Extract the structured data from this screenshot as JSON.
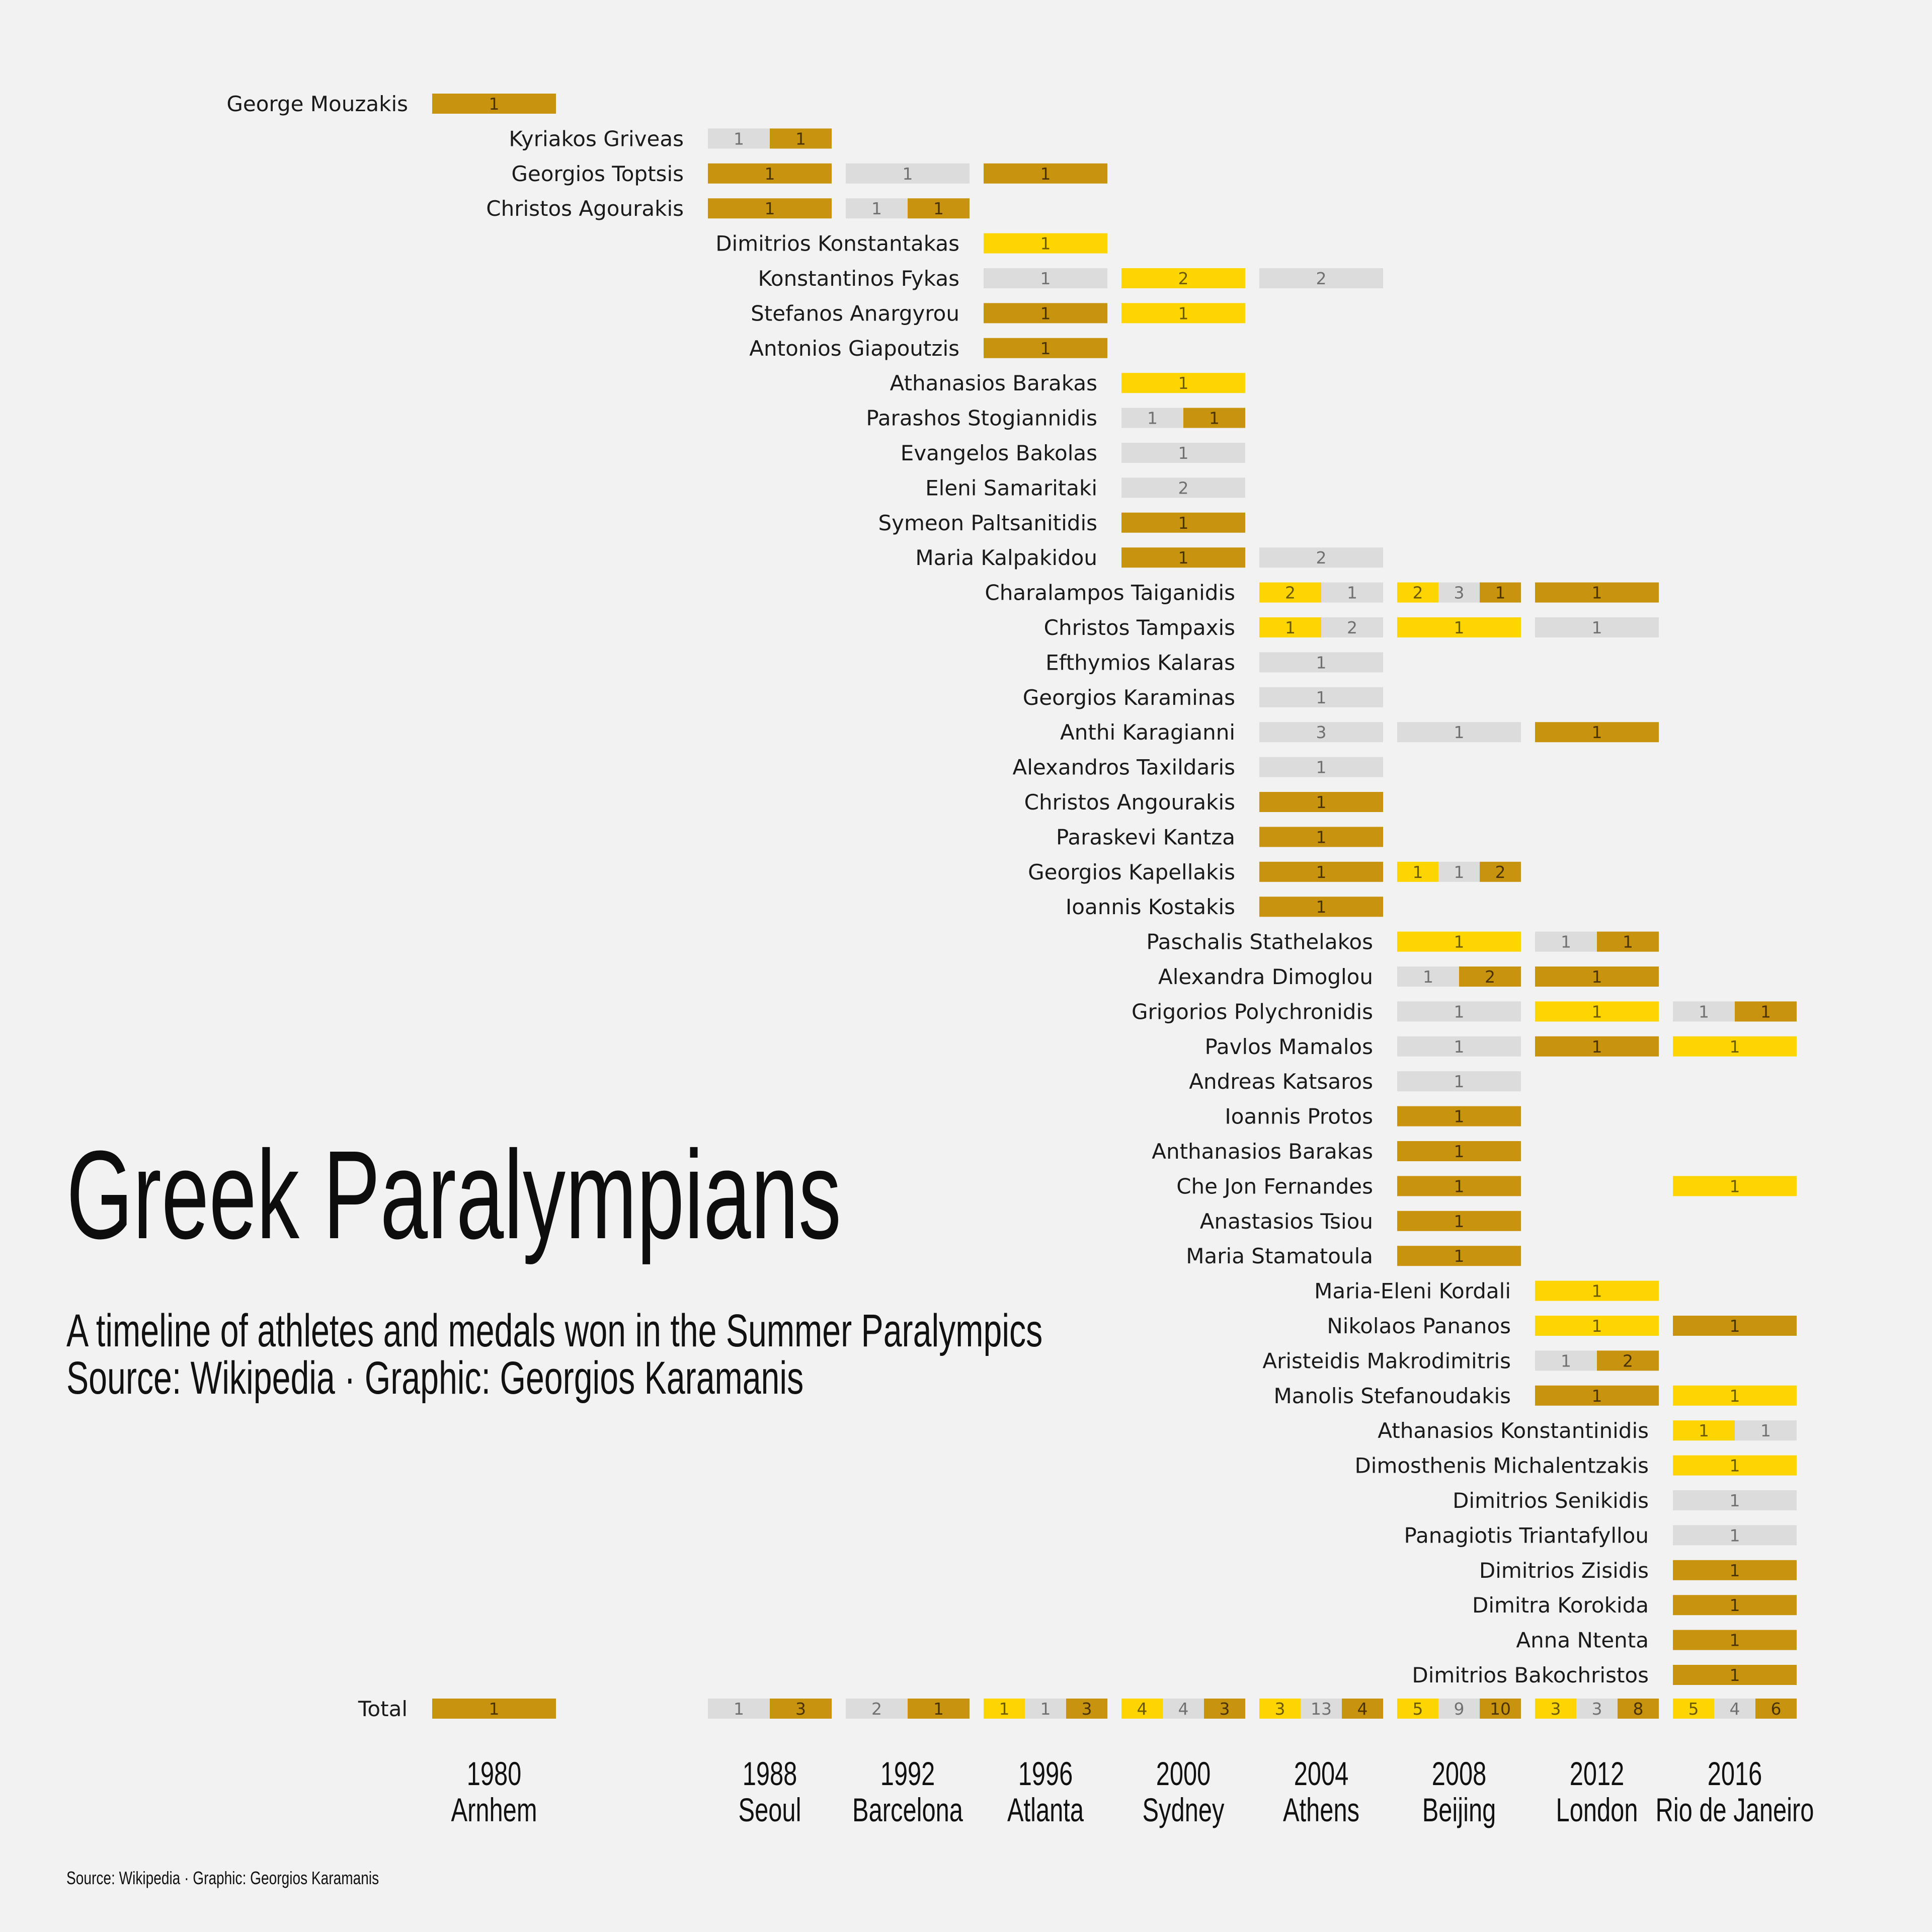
{
  "title": "Greek Paralympians",
  "subtitle_line1": "A timeline of athletes and medals won in the Summer Paralympics",
  "subtitle_line2": "Source: Wikipedia · Graphic: Georgios Karamanis",
  "footer": "Source: Wikipedia · Graphic: Georgios Karamanis",
  "colors": {
    "gold": "#ffd500",
    "silver": "#dcdcdc",
    "bronze": "#c8940f",
    "background": "#f2f2f2"
  },
  "chart_data": {
    "type": "table",
    "games": [
      {
        "year": "1980",
        "city": "Arnhem"
      },
      {
        "year": "1988",
        "city": "Seoul"
      },
      {
        "year": "1992",
        "city": "Barcelona"
      },
      {
        "year": "1996",
        "city": "Atlanta"
      },
      {
        "year": "2000",
        "city": "Sydney"
      },
      {
        "year": "2004",
        "city": "Athens"
      },
      {
        "year": "2008",
        "city": "Beijing"
      },
      {
        "year": "2012",
        "city": "London"
      },
      {
        "year": "2016",
        "city": "Rio de Janeiro"
      }
    ],
    "medal_order": [
      "gold",
      "silver",
      "bronze"
    ],
    "athletes": [
      {
        "name": "George Mouzakis",
        "medals": [
          {
            "games": "1980",
            "gold": 0,
            "silver": 0,
            "bronze": 1
          }
        ]
      },
      {
        "name": "Kyriakos Griveas",
        "medals": [
          {
            "games": "1988",
            "gold": 0,
            "silver": 1,
            "bronze": 1
          }
        ]
      },
      {
        "name": "Georgios Toptsis",
        "medals": [
          {
            "games": "1988",
            "gold": 0,
            "silver": 0,
            "bronze": 1
          },
          {
            "games": "1992",
            "gold": 0,
            "silver": 1,
            "bronze": 0
          },
          {
            "games": "1996",
            "gold": 0,
            "silver": 0,
            "bronze": 1
          }
        ]
      },
      {
        "name": "Christos Agourakis",
        "medals": [
          {
            "games": "1988",
            "gold": 0,
            "silver": 0,
            "bronze": 1
          },
          {
            "games": "1992",
            "gold": 0,
            "silver": 1,
            "bronze": 1
          }
        ]
      },
      {
        "name": "Dimitrios Konstantakas",
        "medals": [
          {
            "games": "1996",
            "gold": 1,
            "silver": 0,
            "bronze": 0
          }
        ]
      },
      {
        "name": "Konstantinos Fykas",
        "medals": [
          {
            "games": "1996",
            "gold": 0,
            "silver": 1,
            "bronze": 0
          },
          {
            "games": "2000",
            "gold": 2,
            "silver": 0,
            "bronze": 0
          },
          {
            "games": "2004",
            "gold": 0,
            "silver": 2,
            "bronze": 0
          }
        ]
      },
      {
        "name": "Stefanos Anargyrou",
        "medals": [
          {
            "games": "1996",
            "gold": 0,
            "silver": 0,
            "bronze": 1
          },
          {
            "games": "2000",
            "gold": 1,
            "silver": 0,
            "bronze": 0
          }
        ]
      },
      {
        "name": "Antonios Giapoutzis",
        "medals": [
          {
            "games": "1996",
            "gold": 0,
            "silver": 0,
            "bronze": 1
          }
        ]
      },
      {
        "name": "Athanasios Barakas",
        "medals": [
          {
            "games": "2000",
            "gold": 1,
            "silver": 0,
            "bronze": 0
          }
        ]
      },
      {
        "name": "Parashos Stogiannidis",
        "medals": [
          {
            "games": "2000",
            "gold": 0,
            "silver": 1,
            "bronze": 1
          }
        ]
      },
      {
        "name": "Evangelos Bakolas",
        "medals": [
          {
            "games": "2000",
            "gold": 0,
            "silver": 1,
            "bronze": 0
          }
        ]
      },
      {
        "name": "Eleni Samaritaki",
        "medals": [
          {
            "games": "2000",
            "gold": 0,
            "silver": 2,
            "bronze": 0
          }
        ]
      },
      {
        "name": "Symeon Paltsanitidis",
        "medals": [
          {
            "games": "2000",
            "gold": 0,
            "silver": 0,
            "bronze": 1
          }
        ]
      },
      {
        "name": "Maria Kalpakidou",
        "medals": [
          {
            "games": "2000",
            "gold": 0,
            "silver": 0,
            "bronze": 1
          },
          {
            "games": "2004",
            "gold": 0,
            "silver": 2,
            "bronze": 0
          }
        ]
      },
      {
        "name": "Charalampos Taiganidis",
        "medals": [
          {
            "games": "2004",
            "gold": 2,
            "silver": 1,
            "bronze": 0
          },
          {
            "games": "2008",
            "gold": 2,
            "silver": 3,
            "bronze": 1
          },
          {
            "games": "2012",
            "gold": 0,
            "silver": 0,
            "bronze": 1
          }
        ]
      },
      {
        "name": "Christos Tampaxis",
        "medals": [
          {
            "games": "2004",
            "gold": 1,
            "silver": 2,
            "bronze": 0
          },
          {
            "games": "2008",
            "gold": 1,
            "silver": 0,
            "bronze": 0
          },
          {
            "games": "2012",
            "gold": 0,
            "silver": 1,
            "bronze": 0
          }
        ]
      },
      {
        "name": "Efthymios Kalaras",
        "medals": [
          {
            "games": "2004",
            "gold": 0,
            "silver": 1,
            "bronze": 0
          }
        ]
      },
      {
        "name": "Georgios Karaminas",
        "medals": [
          {
            "games": "2004",
            "gold": 0,
            "silver": 1,
            "bronze": 0
          }
        ]
      },
      {
        "name": "Anthi Karagianni",
        "medals": [
          {
            "games": "2004",
            "gold": 0,
            "silver": 3,
            "bronze": 0
          },
          {
            "games": "2008",
            "gold": 0,
            "silver": 1,
            "bronze": 0
          },
          {
            "games": "2012",
            "gold": 0,
            "silver": 0,
            "bronze": 1
          }
        ]
      },
      {
        "name": "Alexandros Taxildaris",
        "medals": [
          {
            "games": "2004",
            "gold": 0,
            "silver": 1,
            "bronze": 0
          }
        ]
      },
      {
        "name": "Christos Angourakis",
        "medals": [
          {
            "games": "2004",
            "gold": 0,
            "silver": 0,
            "bronze": 1
          }
        ]
      },
      {
        "name": "Paraskevi Kantza",
        "medals": [
          {
            "games": "2004",
            "gold": 0,
            "silver": 0,
            "bronze": 1
          }
        ]
      },
      {
        "name": "Georgios Kapellakis",
        "medals": [
          {
            "games": "2004",
            "gold": 0,
            "silver": 0,
            "bronze": 1
          },
          {
            "games": "2008",
            "gold": 1,
            "silver": 1,
            "bronze": 2
          }
        ]
      },
      {
        "name": "Ioannis Kostakis",
        "medals": [
          {
            "games": "2004",
            "gold": 0,
            "silver": 0,
            "bronze": 1
          }
        ]
      },
      {
        "name": "Paschalis Stathelakos",
        "medals": [
          {
            "games": "2008",
            "gold": 1,
            "silver": 0,
            "bronze": 0
          },
          {
            "games": "2012",
            "gold": 0,
            "silver": 1,
            "bronze": 1
          }
        ]
      },
      {
        "name": "Alexandra Dimoglou",
        "medals": [
          {
            "games": "2008",
            "gold": 0,
            "silver": 1,
            "bronze": 2
          },
          {
            "games": "2012",
            "gold": 0,
            "silver": 0,
            "bronze": 1
          }
        ]
      },
      {
        "name": "Grigorios Polychronidis",
        "medals": [
          {
            "games": "2008",
            "gold": 0,
            "silver": 1,
            "bronze": 0
          },
          {
            "games": "2012",
            "gold": 1,
            "silver": 0,
            "bronze": 0
          },
          {
            "games": "2016",
            "gold": 0,
            "silver": 1,
            "bronze": 1
          }
        ]
      },
      {
        "name": "Pavlos Mamalos",
        "medals": [
          {
            "games": "2008",
            "gold": 0,
            "silver": 1,
            "bronze": 0
          },
          {
            "games": "2012",
            "gold": 0,
            "silver": 0,
            "bronze": 1
          },
          {
            "games": "2016",
            "gold": 1,
            "silver": 0,
            "bronze": 0
          }
        ]
      },
      {
        "name": "Andreas Katsaros",
        "medals": [
          {
            "games": "2008",
            "gold": 0,
            "silver": 1,
            "bronze": 0
          }
        ]
      },
      {
        "name": "Ioannis Protos",
        "medals": [
          {
            "games": "2008",
            "gold": 0,
            "silver": 0,
            "bronze": 1
          }
        ]
      },
      {
        "name": "Anthanasios Barakas",
        "medals": [
          {
            "games": "2008",
            "gold": 0,
            "silver": 0,
            "bronze": 1
          }
        ]
      },
      {
        "name": "Che Jon Fernandes",
        "medals": [
          {
            "games": "2008",
            "gold": 0,
            "silver": 0,
            "bronze": 1
          },
          {
            "games": "2016",
            "gold": 1,
            "silver": 0,
            "bronze": 0
          }
        ]
      },
      {
        "name": "Anastasios Tsiou",
        "medals": [
          {
            "games": "2008",
            "gold": 0,
            "silver": 0,
            "bronze": 1
          }
        ]
      },
      {
        "name": "Maria Stamatoula",
        "medals": [
          {
            "games": "2008",
            "gold": 0,
            "silver": 0,
            "bronze": 1
          }
        ]
      },
      {
        "name": "Maria-Eleni Kordali",
        "medals": [
          {
            "games": "2012",
            "gold": 1,
            "silver": 0,
            "bronze": 0
          }
        ]
      },
      {
        "name": "Nikolaos Pananos",
        "medals": [
          {
            "games": "2012",
            "gold": 1,
            "silver": 0,
            "bronze": 0
          },
          {
            "games": "2016",
            "gold": 0,
            "silver": 0,
            "bronze": 1
          }
        ]
      },
      {
        "name": "Aristeidis Makrodimitris",
        "medals": [
          {
            "games": "2012",
            "gold": 0,
            "silver": 1,
            "bronze": 2
          }
        ]
      },
      {
        "name": "Manolis Stefanoudakis",
        "medals": [
          {
            "games": "2012",
            "gold": 0,
            "silver": 0,
            "bronze": 1
          },
          {
            "games": "2016",
            "gold": 1,
            "silver": 0,
            "bronze": 0
          }
        ]
      },
      {
        "name": "Athanasios Konstantinidis",
        "medals": [
          {
            "games": "2016",
            "gold": 1,
            "silver": 1,
            "bronze": 0
          }
        ]
      },
      {
        "name": "Dimosthenis Michalentzakis",
        "medals": [
          {
            "games": "2016",
            "gold": 1,
            "silver": 0,
            "bronze": 0
          }
        ]
      },
      {
        "name": "Dimitrios Senikidis",
        "medals": [
          {
            "games": "2016",
            "gold": 0,
            "silver": 1,
            "bronze": 0
          }
        ]
      },
      {
        "name": "Panagiotis Triantafyllou",
        "medals": [
          {
            "games": "2016",
            "gold": 0,
            "silver": 1,
            "bronze": 0
          }
        ]
      },
      {
        "name": "Dimitrios Zisidis",
        "medals": [
          {
            "games": "2016",
            "gold": 0,
            "silver": 0,
            "bronze": 1
          }
        ]
      },
      {
        "name": "Dimitra Korokida",
        "medals": [
          {
            "games": "2016",
            "gold": 0,
            "silver": 0,
            "bronze": 1
          }
        ]
      },
      {
        "name": "Anna Ntenta",
        "medals": [
          {
            "games": "2016",
            "gold": 0,
            "silver": 0,
            "bronze": 1
          }
        ]
      },
      {
        "name": "Dimitrios Bakochristos",
        "medals": [
          {
            "games": "2016",
            "gold": 0,
            "silver": 0,
            "bronze": 1
          }
        ]
      }
    ],
    "total_label": "Total",
    "totals": [
      {
        "games": "1980",
        "gold": 0,
        "silver": 0,
        "bronze": 1
      },
      {
        "games": "1988",
        "gold": 0,
        "silver": 1,
        "bronze": 3
      },
      {
        "games": "1992",
        "gold": 0,
        "silver": 2,
        "bronze": 1
      },
      {
        "games": "1996",
        "gold": 1,
        "silver": 1,
        "bronze": 3
      },
      {
        "games": "2000",
        "gold": 4,
        "silver": 4,
        "bronze": 3
      },
      {
        "games": "2004",
        "gold": 3,
        "silver": 13,
        "bronze": 4
      },
      {
        "games": "2008",
        "gold": 5,
        "silver": 9,
        "bronze": 10
      },
      {
        "games": "2012",
        "gold": 3,
        "silver": 3,
        "bronze": 8
      },
      {
        "games": "2016",
        "gold": 5,
        "silver": 4,
        "bronze": 6
      }
    ]
  }
}
